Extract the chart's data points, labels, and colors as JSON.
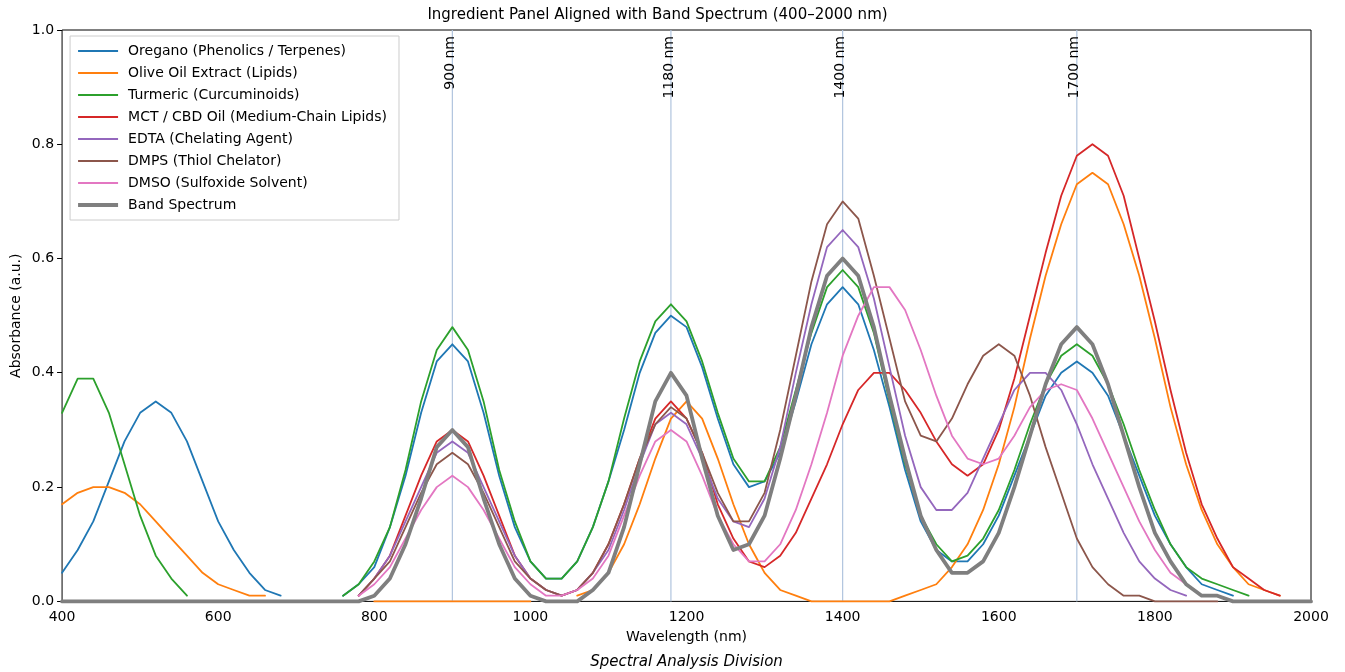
{
  "chart_data": {
    "type": "line",
    "title": "Ingredient Panel Aligned with Band Spectrum (400–2000 nm)",
    "xlabel": "Wavelength (nm)",
    "ylabel": "Absorbance (a.u.)",
    "x": [
      400,
      420,
      440,
      460,
      480,
      500,
      520,
      540,
      560,
      580,
      600,
      620,
      640,
      660,
      680,
      700,
      720,
      740,
      760,
      780,
      800,
      820,
      840,
      860,
      880,
      900,
      920,
      940,
      960,
      980,
      1000,
      1020,
      1040,
      1060,
      1080,
      1100,
      1120,
      1140,
      1160,
      1180,
      1200,
      1220,
      1240,
      1260,
      1280,
      1300,
      1320,
      1340,
      1360,
      1380,
      1400,
      1420,
      1440,
      1460,
      1480,
      1500,
      1520,
      1540,
      1560,
      1580,
      1600,
      1620,
      1640,
      1660,
      1680,
      1700,
      1720,
      1740,
      1760,
      1780,
      1800,
      1820,
      1840,
      1860,
      1880,
      1900,
      1920,
      1940,
      1960,
      1980,
      2000
    ],
    "series": [
      {
        "name": "Oregano (Phenolics / Terpenes)",
        "color": "#1f77b4",
        "values": [
          0.05,
          0.09,
          0.14,
          0.21,
          0.28,
          0.33,
          0.35,
          0.33,
          0.28,
          0.21,
          0.14,
          0.09,
          0.05,
          0.02,
          0.01,
          null,
          null,
          null,
          0.01,
          0.03,
          0.06,
          0.13,
          0.22,
          0.33,
          0.42,
          0.45,
          0.42,
          0.33,
          0.22,
          0.13,
          0.07,
          0.04,
          0.04,
          0.07,
          0.13,
          0.21,
          0.3,
          0.4,
          0.47,
          0.5,
          0.48,
          0.41,
          0.32,
          0.24,
          0.2,
          0.21,
          0.26,
          0.35,
          0.45,
          0.52,
          0.55,
          0.52,
          0.44,
          0.34,
          0.23,
          0.14,
          0.09,
          0.07,
          0.07,
          0.1,
          0.15,
          0.22,
          0.29,
          0.36,
          0.4,
          0.42,
          0.4,
          0.36,
          0.29,
          0.22,
          0.15,
          0.1,
          0.06,
          0.03,
          0.02,
          0.01,
          null,
          null,
          null,
          null,
          null
        ]
      },
      {
        "name": "Olive Oil Extract (Lipids)",
        "color": "#ff7f0e",
        "values": [
          0.17,
          0.19,
          0.2,
          0.2,
          0.19,
          0.17,
          0.14,
          0.11,
          0.08,
          0.05,
          0.03,
          0.02,
          0.01,
          0.01,
          null,
          null,
          null,
          null,
          null,
          null,
          0,
          0,
          0,
          0,
          0,
          0,
          0,
          0,
          0,
          0,
          0,
          null,
          null,
          0.01,
          0.02,
          0.05,
          0.1,
          0.17,
          0.25,
          0.32,
          0.35,
          0.32,
          0.25,
          0.17,
          0.1,
          0.05,
          0.02,
          0.01,
          0,
          0,
          0,
          0,
          0,
          0,
          0.01,
          0.02,
          0.03,
          0.06,
          0.1,
          0.16,
          0.24,
          0.34,
          0.46,
          0.57,
          0.66,
          0.73,
          0.75,
          0.73,
          0.66,
          0.57,
          0.46,
          0.34,
          0.24,
          0.16,
          0.1,
          0.06,
          0.03,
          0.02,
          0.01,
          null,
          null
        ]
      },
      {
        "name": "Turmeric (Curcuminoids)",
        "color": "#2ca02c",
        "values": [
          0.33,
          0.39,
          0.39,
          0.33,
          0.24,
          0.15,
          0.08,
          0.04,
          0.01,
          null,
          null,
          null,
          null,
          null,
          null,
          null,
          null,
          null,
          0.01,
          0.03,
          0.07,
          0.13,
          0.23,
          0.35,
          0.44,
          0.48,
          0.44,
          0.35,
          0.23,
          0.14,
          0.07,
          0.04,
          0.04,
          0.07,
          0.13,
          0.21,
          0.32,
          0.42,
          0.49,
          0.52,
          0.49,
          0.42,
          0.33,
          0.25,
          0.21,
          0.21,
          0.27,
          0.37,
          0.47,
          0.55,
          0.58,
          0.55,
          0.47,
          0.35,
          0.24,
          0.15,
          0.1,
          0.07,
          0.08,
          0.11,
          0.16,
          0.23,
          0.31,
          0.38,
          0.43,
          0.45,
          0.43,
          0.38,
          0.31,
          0.23,
          0.16,
          0.1,
          0.06,
          0.04,
          0.03,
          0.02,
          0.01,
          null,
          null,
          null,
          null
        ]
      },
      {
        "name": "MCT / CBD Oil (Medium-Chain Lipids)",
        "color": "#d62728",
        "values": [
          null,
          null,
          null,
          null,
          null,
          null,
          null,
          null,
          null,
          null,
          null,
          null,
          null,
          null,
          null,
          null,
          null,
          null,
          null,
          0.01,
          0.04,
          0.08,
          0.15,
          0.22,
          0.28,
          0.3,
          0.28,
          0.22,
          0.15,
          0.08,
          0.04,
          0.02,
          0.01,
          0.02,
          0.05,
          0.1,
          0.17,
          0.25,
          0.32,
          0.35,
          0.32,
          0.26,
          0.17,
          0.11,
          0.07,
          0.06,
          0.08,
          0.12,
          0.18,
          0.24,
          0.31,
          0.37,
          0.4,
          0.4,
          0.37,
          0.33,
          0.28,
          0.24,
          0.22,
          0.24,
          0.3,
          0.39,
          0.5,
          0.61,
          0.71,
          0.78,
          0.8,
          0.78,
          0.71,
          0.6,
          0.49,
          0.37,
          0.26,
          0.17,
          0.11,
          0.06,
          0.04,
          0.02,
          0.01,
          null,
          null
        ]
      },
      {
        "name": "EDTA (Chelating Agent)",
        "color": "#9467bd",
        "values": [
          null,
          null,
          null,
          null,
          null,
          null,
          null,
          null,
          null,
          null,
          null,
          null,
          null,
          null,
          null,
          null,
          null,
          null,
          null,
          0.01,
          0.04,
          0.08,
          0.14,
          0.2,
          0.26,
          0.28,
          0.26,
          0.2,
          0.14,
          0.08,
          0.04,
          0.02,
          0.01,
          0.02,
          0.05,
          0.09,
          0.16,
          0.24,
          0.31,
          0.33,
          0.31,
          0.25,
          0.18,
          0.14,
          0.13,
          0.18,
          0.27,
          0.4,
          0.52,
          0.62,
          0.65,
          0.62,
          0.53,
          0.41,
          0.29,
          0.2,
          0.16,
          0.16,
          0.19,
          0.25,
          0.31,
          0.37,
          0.4,
          0.4,
          0.37,
          0.31,
          0.24,
          0.18,
          0.12,
          0.07,
          0.04,
          0.02,
          0.01,
          null,
          null,
          null,
          null,
          null,
          null,
          null,
          null
        ]
      },
      {
        "name": "DMPS (Thiol Chelator)",
        "color": "#8c564b",
        "values": [
          null,
          null,
          null,
          null,
          null,
          null,
          null,
          null,
          null,
          null,
          null,
          null,
          null,
          null,
          null,
          null,
          null,
          null,
          null,
          0.01,
          0.04,
          0.07,
          0.13,
          0.19,
          0.24,
          0.26,
          0.24,
          0.19,
          0.13,
          0.07,
          0.04,
          0.02,
          0.01,
          0.02,
          0.05,
          0.1,
          0.17,
          0.25,
          0.31,
          0.34,
          0.32,
          0.26,
          0.19,
          0.14,
          0.14,
          0.19,
          0.3,
          0.43,
          0.56,
          0.66,
          0.7,
          0.67,
          0.57,
          0.46,
          0.35,
          0.29,
          0.28,
          0.32,
          0.38,
          0.43,
          0.45,
          0.43,
          0.36,
          0.27,
          0.19,
          0.11,
          0.06,
          0.03,
          0.01,
          0.01,
          0,
          0,
          0,
          0,
          0,
          null,
          null,
          null,
          null,
          null,
          null
        ]
      },
      {
        "name": "DMSO (Sulfoxide Solvent)",
        "color": "#e377c2",
        "values": [
          null,
          null,
          null,
          null,
          null,
          null,
          null,
          null,
          null,
          null,
          null,
          null,
          null,
          null,
          null,
          null,
          null,
          null,
          null,
          0.01,
          0.03,
          0.06,
          0.11,
          0.16,
          0.2,
          0.22,
          0.2,
          0.16,
          0.11,
          0.06,
          0.03,
          0.01,
          0.01,
          0.02,
          0.04,
          0.08,
          0.15,
          0.22,
          0.28,
          0.3,
          0.28,
          0.22,
          0.15,
          0.1,
          0.07,
          0.07,
          0.1,
          0.16,
          0.24,
          0.33,
          0.43,
          0.5,
          0.55,
          0.55,
          0.51,
          0.44,
          0.36,
          0.29,
          0.25,
          0.24,
          0.25,
          0.29,
          0.34,
          0.37,
          0.38,
          0.37,
          0.32,
          0.26,
          0.2,
          0.14,
          0.09,
          0.05,
          0.03,
          0.01,
          0.01,
          null,
          null,
          null,
          null,
          null,
          null
        ]
      },
      {
        "name": "Band Spectrum",
        "color": "#7f7f7f",
        "values": [
          0,
          0,
          0,
          0,
          0,
          0,
          0,
          0,
          0,
          0,
          0,
          0,
          0,
          0,
          0,
          0,
          0,
          0,
          0,
          0,
          0.01,
          0.04,
          0.1,
          0.18,
          0.27,
          0.3,
          0.27,
          0.18,
          0.1,
          0.04,
          0.01,
          0,
          0,
          0,
          0.02,
          0.05,
          0.13,
          0.24,
          0.35,
          0.4,
          0.36,
          0.25,
          0.15,
          0.09,
          0.1,
          0.15,
          0.25,
          0.36,
          0.48,
          0.57,
          0.6,
          0.57,
          0.48,
          0.36,
          0.25,
          0.15,
          0.09,
          0.05,
          0.05,
          0.07,
          0.12,
          0.2,
          0.29,
          0.38,
          0.45,
          0.48,
          0.45,
          0.38,
          0.29,
          0.2,
          0.12,
          0.07,
          0.03,
          0.01,
          0.01,
          0,
          0,
          0,
          0,
          0,
          0
        ]
      }
    ],
    "xlim": [
      400,
      2000
    ],
    "xticks": [
      400,
      600,
      800,
      1000,
      1200,
      1400,
      1600,
      1800,
      2000
    ],
    "ylim": [
      0,
      1
    ],
    "yticks": [
      {
        "value": 0,
        "label": "0.0"
      },
      {
        "value": 0.2,
        "label": "0.2"
      },
      {
        "value": 0.4,
        "label": "0.4"
      },
      {
        "value": 0.6,
        "label": "0.6"
      },
      {
        "value": 0.8,
        "label": "0.8"
      },
      {
        "value": 1,
        "label": "1.0"
      }
    ],
    "ref_lines": [
      {
        "axis": "x",
        "value": 900,
        "label": "900 nm",
        "color": "#b0c4de"
      },
      {
        "axis": "x",
        "value": 1180,
        "label": "1180 nm",
        "color": "#b0c4de"
      },
      {
        "axis": "x",
        "value": 1400,
        "label": "1400 nm",
        "color": "#b0c4de"
      },
      {
        "axis": "x",
        "value": 1700,
        "label": "1700 nm",
        "color": "#b0c4de"
      }
    ],
    "annotations": [
      "Spectral Analysis Division"
    ],
    "legend": "top left",
    "marker": "none"
  }
}
